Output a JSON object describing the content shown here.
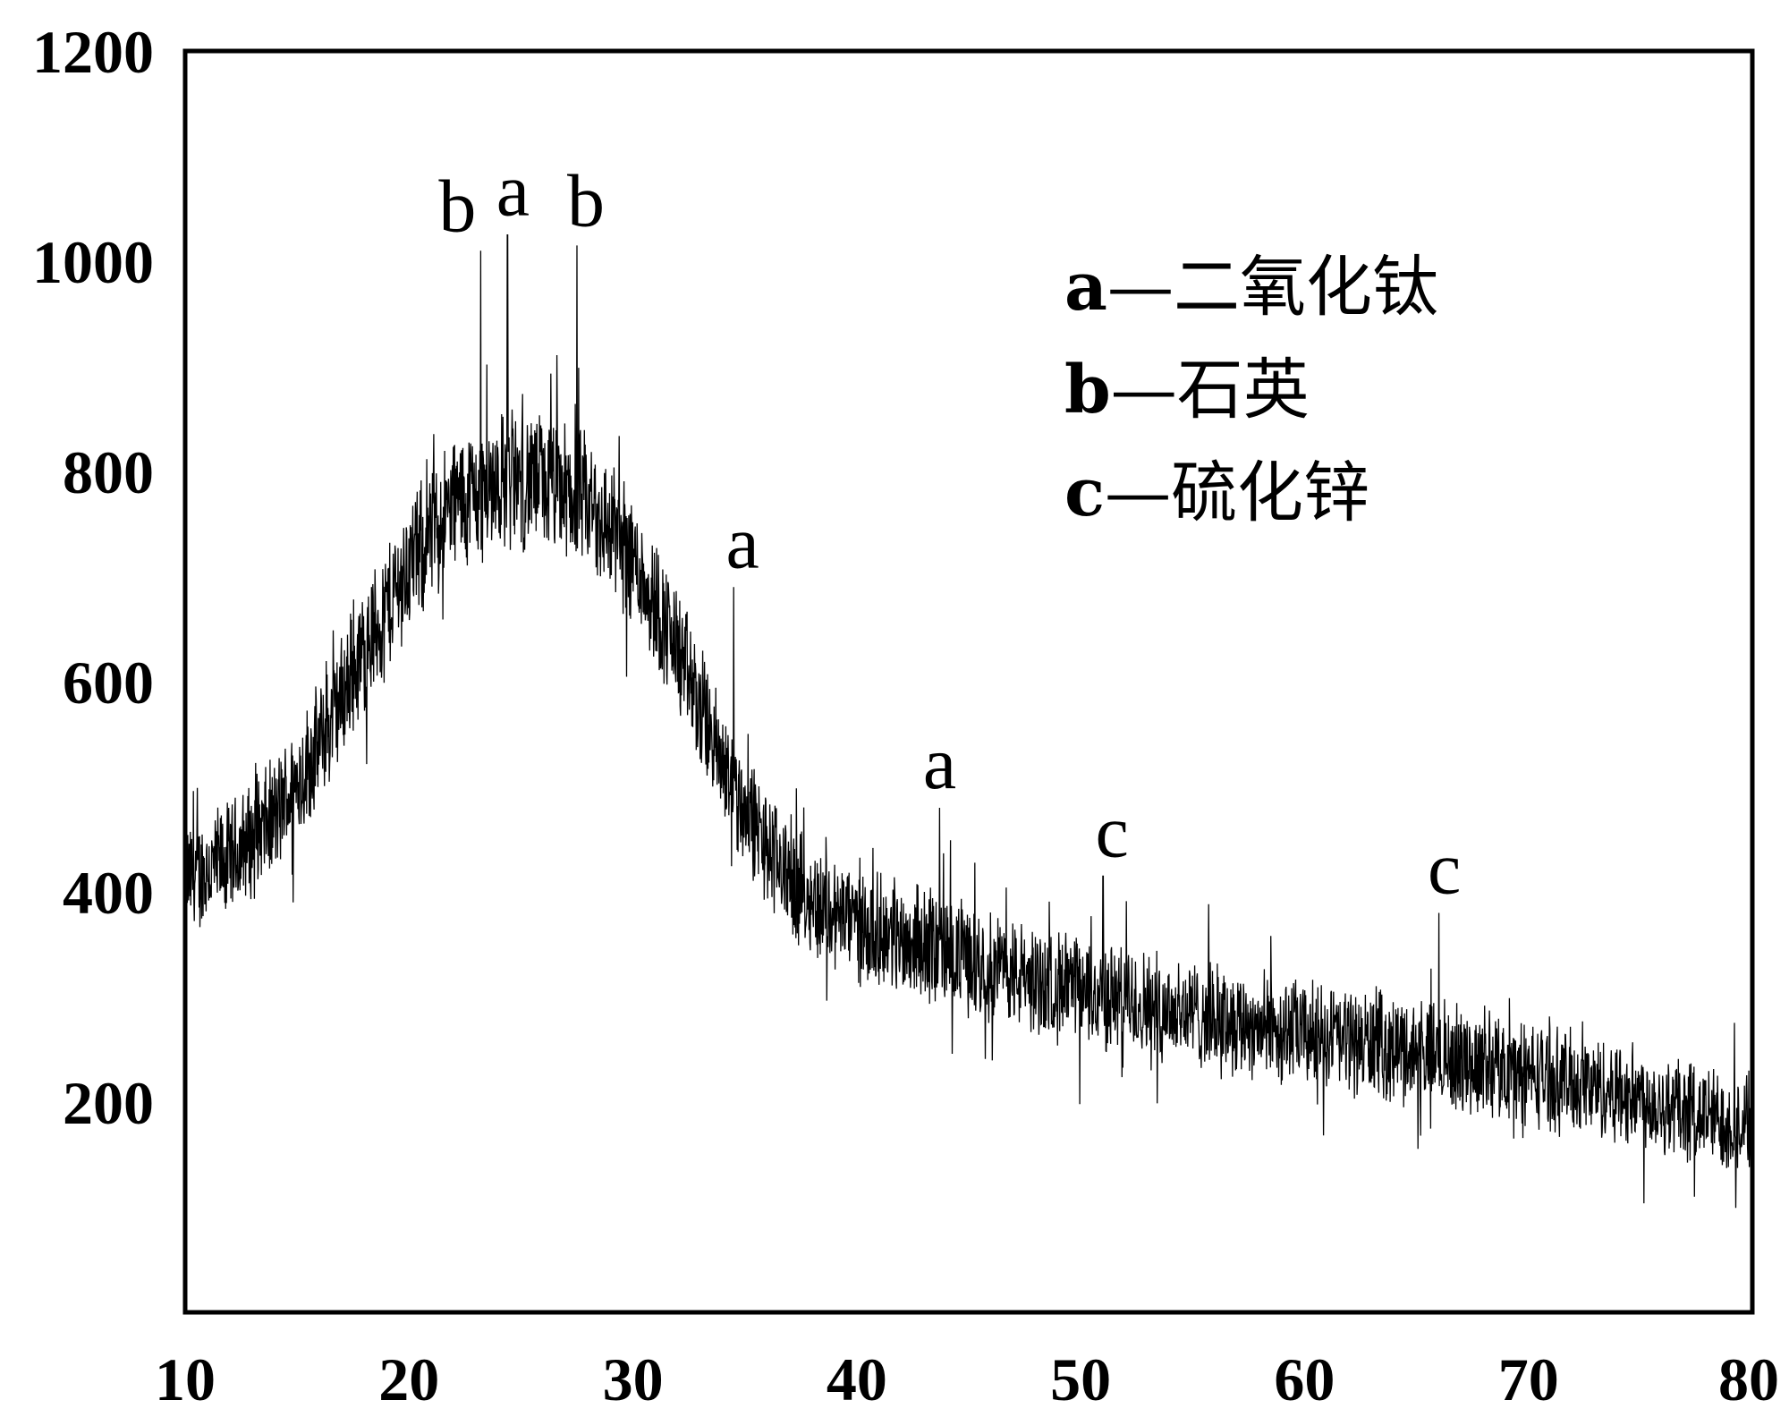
{
  "chart_data": {
    "type": "line",
    "title": "",
    "xlabel": "",
    "ylabel": "",
    "xlim": [
      10,
      80
    ],
    "ylim": [
      0,
      1200
    ],
    "x_ticks": [
      10,
      20,
      30,
      40,
      50,
      60,
      70,
      80
    ],
    "y_ticks": [
      200,
      400,
      600,
      800,
      1000,
      1200
    ],
    "grid": false,
    "line_color": "#000000",
    "noise_amplitude": 75,
    "series": [
      {
        "name": "",
        "style": "noisy-envelope",
        "x": [
          10,
          12,
          14,
          16,
          18,
          20,
          22,
          24,
          26,
          28,
          30,
          32,
          34,
          36,
          38,
          40,
          42,
          44,
          46,
          48,
          50,
          55,
          60,
          65,
          70,
          75,
          80
        ],
        "y": [
          410,
          430,
          470,
          540,
          630,
          710,
          770,
          790,
          790,
          770,
          720,
          630,
          520,
          440,
          390,
          370,
          355,
          345,
          330,
          315,
          305,
          285,
          265,
          248,
          228,
          205,
          175
        ]
      }
    ],
    "peak_labels": [
      {
        "text": "b",
        "x": 23.2,
        "y": 1010
      },
      {
        "text": "a",
        "x": 24.4,
        "y": 1025
      },
      {
        "text": "b",
        "x": 27.5,
        "y": 1015
      },
      {
        "text": "a",
        "x": 34.5,
        "y": 690
      },
      {
        "text": "a",
        "x": 43.7,
        "y": 480
      },
      {
        "text": "c",
        "x": 51.0,
        "y": 415
      },
      {
        "text": "c",
        "x": 66.0,
        "y": 380
      }
    ],
    "legend": {
      "position": "top-right",
      "entries": [
        {
          "key": "a",
          "text": "—二氧化钛"
        },
        {
          "key": "b",
          "text": "—石英"
        },
        {
          "key": "c",
          "text": "—硫化锌"
        }
      ]
    }
  }
}
